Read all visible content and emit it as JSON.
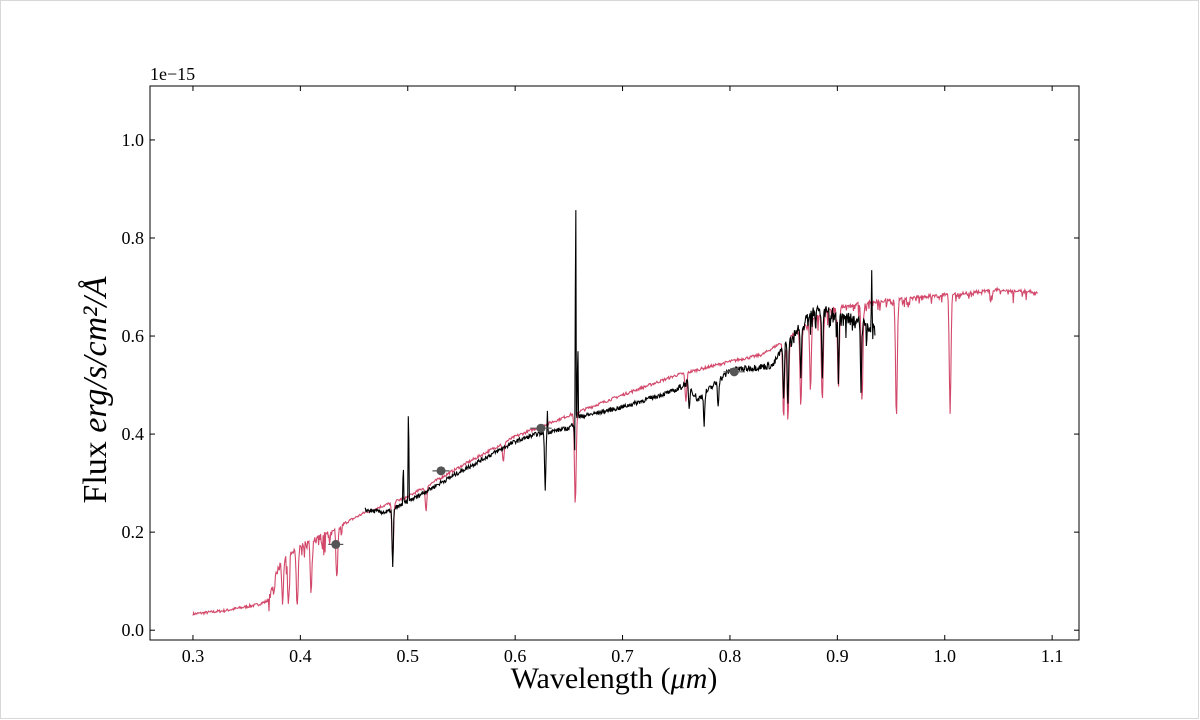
{
  "chart_data": {
    "type": "line",
    "title": "",
    "xlabel_prefix": "Wavelength (",
    "xlabel_unit": "μm",
    "xlabel_suffix": ")",
    "ylabel_prefix": "Flux ",
    "ylabel_unit": "erg/s/cm²/Å",
    "offset_text": "1e−15",
    "xlim": [
      0.26,
      1.125
    ],
    "ylim": [
      -0.02,
      1.11
    ],
    "x_ticks": [
      0.3,
      0.4,
      0.5,
      0.6,
      0.7,
      0.8,
      0.9,
      1.0,
      1.1
    ],
    "x_tick_labels": [
      "0.3",
      "0.4",
      "0.5",
      "0.6",
      "0.7",
      "0.8",
      "0.9",
      "1.0",
      "1.1"
    ],
    "y_ticks": [
      0.0,
      0.2,
      0.4,
      0.6,
      0.8,
      1.0
    ],
    "y_tick_labels": [
      "0.0",
      "0.2",
      "0.4",
      "0.6",
      "0.8",
      "1.0"
    ],
    "grid": false,
    "colors": {
      "model": "#d2486a",
      "observed": "#000000",
      "photometry": "#555555"
    },
    "series": [
      {
        "id": "model",
        "continuum": [
          [
            0.3,
            0.033
          ],
          [
            0.33,
            0.04
          ],
          [
            0.36,
            0.052
          ],
          [
            0.37,
            0.06
          ],
          [
            0.38,
            0.14
          ],
          [
            0.4,
            0.175
          ],
          [
            0.43,
            0.205
          ],
          [
            0.46,
            0.24
          ],
          [
            0.5,
            0.272
          ],
          [
            0.55,
            0.335
          ],
          [
            0.6,
            0.395
          ],
          [
            0.65,
            0.438
          ],
          [
            0.7,
            0.48
          ],
          [
            0.75,
            0.52
          ],
          [
            0.8,
            0.548
          ],
          [
            0.83,
            0.562
          ],
          [
            0.85,
            0.59
          ],
          [
            0.88,
            0.64
          ],
          [
            0.9,
            0.66
          ],
          [
            0.95,
            0.675
          ],
          [
            1.0,
            0.685
          ],
          [
            1.05,
            0.695
          ],
          [
            1.087,
            0.69
          ]
        ],
        "absorption_lines": [
          [
            0.3835,
            0.09
          ],
          [
            0.3889,
            0.1
          ],
          [
            0.397,
            0.12
          ],
          [
            0.41,
            0.11
          ],
          [
            0.434,
            0.1
          ],
          [
            0.486,
            0.12
          ],
          [
            0.517,
            0.05
          ],
          [
            0.589,
            0.04
          ],
          [
            0.656,
            0.19
          ],
          [
            0.759,
            0.06
          ],
          [
            0.85,
            0.16
          ],
          [
            0.854,
            0.17
          ],
          [
            0.866,
            0.16
          ],
          [
            0.875,
            0.12
          ],
          [
            0.886,
            0.18
          ],
          [
            0.901,
            0.17
          ],
          [
            0.923,
            0.2
          ],
          [
            0.955,
            0.24
          ],
          [
            1.005,
            0.24
          ]
        ]
      },
      {
        "id": "observed",
        "x_range": [
          0.46,
          0.935
        ],
        "continuum": [
          [
            0.46,
            0.245
          ],
          [
            0.48,
            0.24
          ],
          [
            0.5,
            0.262
          ],
          [
            0.55,
            0.325
          ],
          [
            0.6,
            0.385
          ],
          [
            0.62,
            0.4
          ],
          [
            0.65,
            0.412
          ],
          [
            0.66,
            0.435
          ],
          [
            0.7,
            0.455
          ],
          [
            0.75,
            0.49
          ],
          [
            0.76,
            0.505
          ],
          [
            0.77,
            0.47
          ],
          [
            0.8,
            0.53
          ],
          [
            0.84,
            0.54
          ],
          [
            0.85,
            0.58
          ],
          [
            0.88,
            0.66
          ],
          [
            0.9,
            0.65
          ],
          [
            0.935,
            0.62
          ]
        ],
        "emission_lines": [
          [
            0.4958,
            0.09
          ],
          [
            0.5007,
            0.22
          ],
          [
            0.6563,
            0.64
          ],
          [
            0.6583,
            0.18
          ],
          [
            0.63,
            0.04
          ],
          [
            0.932,
            0.13
          ]
        ],
        "absorption_lines": [
          [
            0.486,
            0.12
          ],
          [
            0.628,
            0.12
          ],
          [
            0.656,
            0.1
          ],
          [
            0.762,
            0.05
          ],
          [
            0.776,
            0.06
          ],
          [
            0.789,
            0.05
          ],
          [
            0.85,
            0.11
          ],
          [
            0.854,
            0.12
          ],
          [
            0.866,
            0.11
          ],
          [
            0.886,
            0.13
          ],
          [
            0.901,
            0.12
          ],
          [
            0.922,
            0.14
          ]
        ]
      },
      {
        "id": "photometry",
        "points": [
          {
            "x": 0.433,
            "y": 0.175,
            "xerr": 0.007,
            "yerr": 0.006
          },
          {
            "x": 0.531,
            "y": 0.325,
            "xerr": 0.008,
            "yerr": 0.006
          },
          {
            "x": 0.624,
            "y": 0.412,
            "xerr": 0.01,
            "yerr": 0.006
          },
          {
            "x": 0.804,
            "y": 0.527,
            "xerr": 0.01,
            "yerr": 0.006
          }
        ]
      }
    ]
  }
}
